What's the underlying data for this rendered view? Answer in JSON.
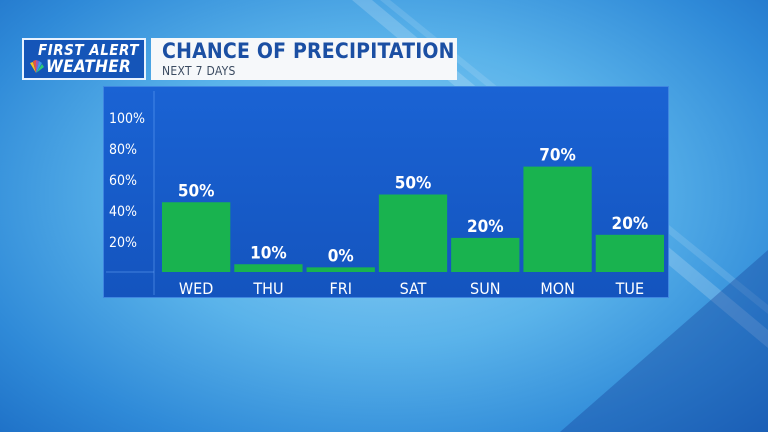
{
  "logo": {
    "line1": "FIRST ALERT",
    "line2": "WEATHER"
  },
  "header": {
    "title": "CHANCE OF PRECIPITATION",
    "subtitle": "NEXT 7 DAYS"
  },
  "colors": {
    "bar": "#19b34f",
    "panel": "#1a5fd0",
    "title": "#1b4fa3"
  },
  "chart_data": {
    "type": "bar",
    "title": "CHANCE OF PRECIPITATION",
    "subtitle": "NEXT 7 DAYS",
    "categories": [
      "WED",
      "THU",
      "FRI",
      "SAT",
      "SUN",
      "MON",
      "TUE"
    ],
    "values": [
      45,
      5,
      3,
      50,
      22,
      68,
      24
    ],
    "data_labels": [
      "50%",
      "10%",
      "0%",
      "50%",
      "20%",
      "70%",
      "20%"
    ],
    "yticks": [
      20,
      40,
      60,
      80,
      100
    ],
    "ytick_labels": [
      "20%",
      "40%",
      "60%",
      "80%",
      "100%"
    ],
    "ylim": [
      0,
      100
    ],
    "grid": false,
    "legend": "none"
  }
}
